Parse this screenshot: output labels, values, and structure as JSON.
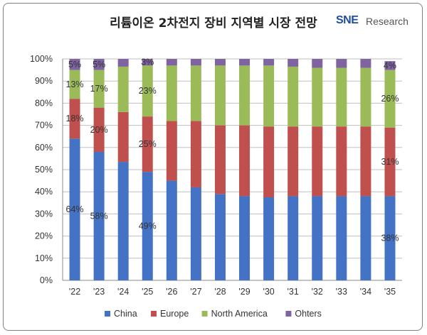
{
  "chart_data": {
    "type": "bar",
    "stacked": true,
    "title": "리튬이온 2차전지 장비 지역별 시장 전망",
    "brand": {
      "part1": "SNE",
      "part2": "Research"
    },
    "categories": [
      "'22",
      "'23",
      "'24",
      "'25",
      "'26",
      "'27",
      "'28",
      "'29",
      "'30",
      "'31",
      "'32",
      "'33",
      "'34",
      "'35"
    ],
    "ylim": [
      0,
      100
    ],
    "yticks": [
      "0%",
      "10%",
      "20%",
      "30%",
      "40%",
      "50%",
      "60%",
      "70%",
      "80%",
      "90%",
      "100%"
    ],
    "grid": true,
    "legend_position": "bottom",
    "series": [
      {
        "name": "China",
        "color": "#4472c4",
        "values": [
          64,
          58,
          53.5,
          49,
          45,
          42,
          39,
          38,
          37.5,
          38,
          38,
          38,
          38,
          38
        ]
      },
      {
        "name": "Europe",
        "color": "#c0504d",
        "values": [
          18,
          20,
          22.5,
          25,
          27,
          30,
          31,
          32,
          32,
          31.5,
          31.5,
          31.5,
          31.5,
          31
        ]
      },
      {
        "name": "North America",
        "color": "#9bbb59",
        "values": [
          13,
          17,
          20.5,
          23,
          25,
          25,
          27,
          27,
          27.5,
          27,
          26.5,
          26.5,
          26.5,
          26
        ]
      },
      {
        "name": "Ohters",
        "color": "#8064a2",
        "values": [
          5,
          5,
          3.5,
          3,
          3,
          3,
          3,
          3,
          3,
          3.5,
          4,
          4,
          4,
          4
        ]
      }
    ],
    "data_labels": [
      {
        "series": 0,
        "index": 0,
        "text": "64%"
      },
      {
        "series": 0,
        "index": 1,
        "text": "58%"
      },
      {
        "series": 0,
        "index": 3,
        "text": "49%"
      },
      {
        "series": 0,
        "index": 13,
        "text": "38%"
      },
      {
        "series": 1,
        "index": 0,
        "text": "18%"
      },
      {
        "series": 1,
        "index": 1,
        "text": "20%"
      },
      {
        "series": 1,
        "index": 3,
        "text": "25%"
      },
      {
        "series": 1,
        "index": 13,
        "text": "31%"
      },
      {
        "series": 2,
        "index": 0,
        "text": "13%"
      },
      {
        "series": 2,
        "index": 1,
        "text": "17%"
      },
      {
        "series": 2,
        "index": 3,
        "text": "23%"
      },
      {
        "series": 2,
        "index": 13,
        "text": "26%"
      },
      {
        "series": 3,
        "index": 0,
        "text": "5%"
      },
      {
        "series": 3,
        "index": 1,
        "text": "5%"
      },
      {
        "series": 3,
        "index": 3,
        "text": "3%"
      },
      {
        "series": 3,
        "index": 13,
        "text": "4%"
      }
    ]
  }
}
